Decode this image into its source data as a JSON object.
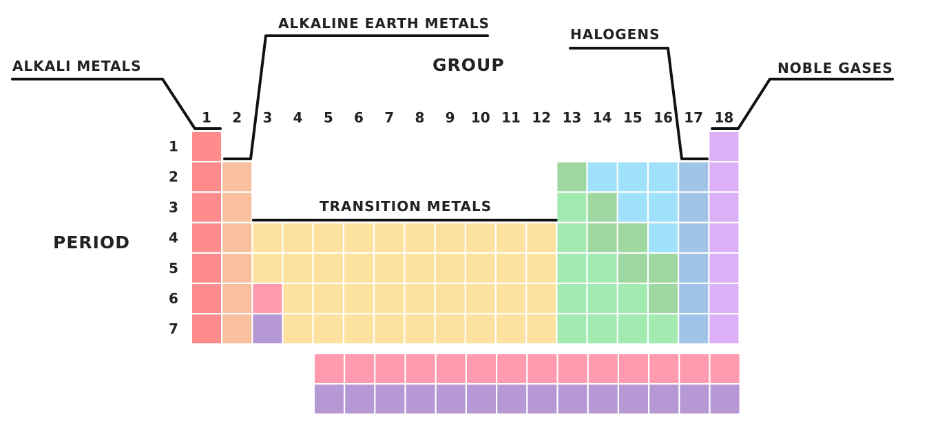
{
  "labels": {
    "group": "GROUP",
    "period": "PERIOD",
    "alkali_metals": "ALKALI METALS",
    "alkaline_earth_metals": "ALKALINE EARTH METALS",
    "transition_metals": "TRANSITION METALS",
    "halogens": "HALOGENS",
    "noble_gases": "NOBLE GASES"
  },
  "groups": [
    "1",
    "2",
    "3",
    "4",
    "5",
    "6",
    "7",
    "8",
    "9",
    "10",
    "11",
    "12",
    "13",
    "14",
    "15",
    "16",
    "17",
    "18"
  ],
  "periods": [
    "1",
    "2",
    "3",
    "4",
    "5",
    "6",
    "7"
  ],
  "colors": {
    "A": "#ff8c8c",
    "E": "#f8c09e",
    "T": "#fce29e",
    "L": "#ff9aaf",
    "C": "#b698d4",
    "M": "#9ed8a0",
    "N": "#a2eab0",
    "B": "#9fe0fb",
    "H": "#9fc4e8",
    "G": "#dbb0f6"
  },
  "table_rows": [
    "A................G",
    "AE..........MBBBHG",
    "AE..........NMBBHG",
    "AETTTTTTTTTTNMMBHG",
    "AETTTTTTTTTTNNMMHG",
    "AELTTTTTTTTTNNNMHG",
    "AECTTTTTTTTTNNNNHG"
  ],
  "lanthanide_row": "LLLLLLLLLLLLLL",
  "actinide_row": "CCCCCCCCCCCCCC"
}
